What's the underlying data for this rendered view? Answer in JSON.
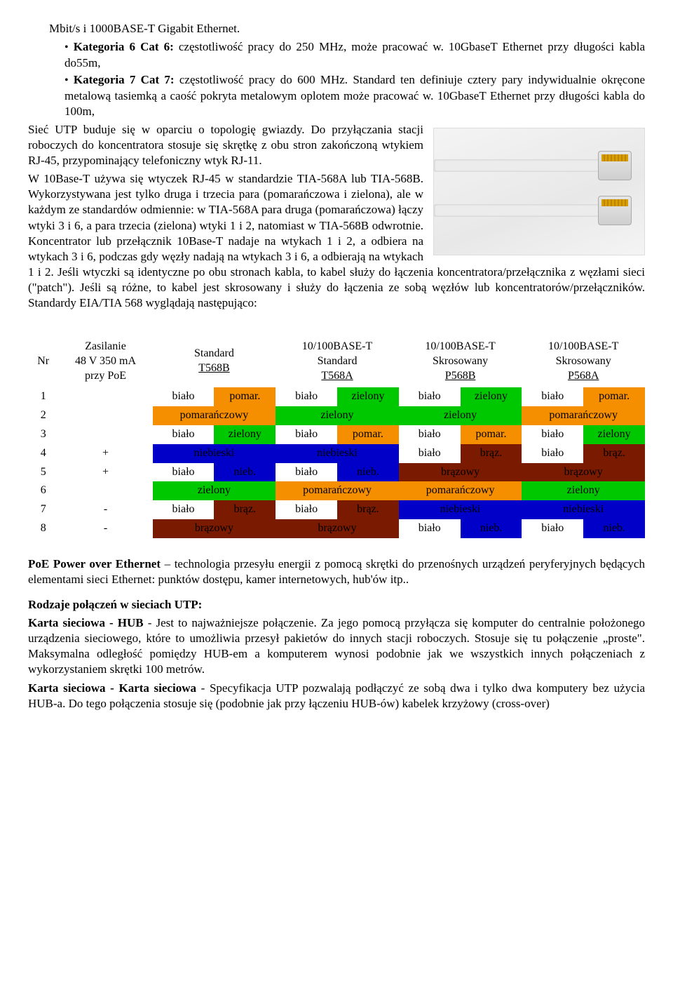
{
  "intro": {
    "line0": "Mbit/s i 1000BASE-T Gigabit Ethernet.",
    "bullet1a": "Kategoria 6 Cat 6:",
    "bullet1b": "  częstotliwość pracy do 250 MHz, może pracować w. 10GbaseT Ethernet przy długości kabla do55m,",
    "bullet2a": "Kategoria 7 Cat 7:",
    "bullet2b": " częstotliwość pracy do 600 MHz. Standard ten definiuje cztery pary indywidualnie okręcone metalową tasiemką a   caość pokryta metalowym oplotem może pracować w. 10GbaseT Ethernet przy długości kabla do 100m,"
  },
  "para1": "Sieć UTP  buduje  się  w  oparciu  o  topologię  gwiazdy.  Do  przyłączania  stacji  roboczych  do koncentratora stosuje się skrętkę z obu stron zakończoną wtykiem RJ-45, przypominający telefoniczny wtyk RJ-11.",
  "para2": "W 10Base-T używa się wtyczek RJ-45 w standardzie TIA-568A lub TIA-568B. Wykorzystywana jest tylko druga i trzecia para (pomarańczowa i zielona), ale w każdym ze standardów odmiennie: w TIA-568A para druga (pomarańczowa) łączy wtyki 3 i 6, a para trzecia (zielona) wtyki 1 i 2, natomiast w TIA-568B odwrotnie.  Koncentrator  lub  przełącznik  10Base-T nadaje na wtykach 1 i 2, a odbiera na wtykach 3 i 6, podczas gdy węzły nadają na wtykach 3 i 6, a odbierają na wtykach 1 i 2. Jeśli wtyczki są identyczne po obu stronach kabla, to kabel służy do łączenia  koncentratora/przełącznika  z  węzłami  sieci  (\"patch\").  Jeśli  są  różne,  to  kabel  jest skrosowany  i  służy  do  łączenia  ze  sobą  węzłów  lub  koncentratorów/przełączników.  Standardy EIA/TIA 568 wyglądają następująco:",
  "tableHeaders": {
    "nr": "Nr",
    "poe_l1": "Zasilanie",
    "poe_l2": "48 V 350 mA",
    "poe_l3": "przy PoE",
    "std_l1": "Standard",
    "std_l2": "T568B",
    "a_l1": "10/100BASE-T",
    "a_l2": "Standard",
    "a_l3": "T568A",
    "b_l1": "10/100BASE-T",
    "b_l2": "Skrosowany",
    "b_l3": "P568B",
    "c_l1": "10/100BASE-T",
    "c_l2": "Skrosowany",
    "c_l3": "P568A"
  },
  "bialo": "biało",
  "colors": {
    "orange": "#f58f00",
    "green": "#00c800",
    "blue": "#0000c8",
    "brown": "#7a1a00",
    "brownDark": "#6a1000",
    "white": "#ffffff",
    "black": "#000000"
  },
  "rows": [
    {
      "nr": "1",
      "poe": "",
      "cells": [
        {
          "type": "half",
          "l": "biało",
          "r": "pomar.",
          "bgL": "#ffffff",
          "bgR": "#f58f00",
          "fg": "#000"
        },
        {
          "type": "half",
          "l": "biało",
          "r": "zielony",
          "bgL": "#ffffff",
          "bgR": "#00c800",
          "fg": "#000"
        },
        {
          "type": "half",
          "l": "biało",
          "r": "zielony",
          "bgL": "#ffffff",
          "bgR": "#00c800",
          "fg": "#000"
        },
        {
          "type": "half",
          "l": "biało",
          "r": "pomar.",
          "bgL": "#ffffff",
          "bgR": "#f58f00",
          "fg": "#000"
        }
      ]
    },
    {
      "nr": "2",
      "poe": "",
      "cells": [
        {
          "type": "full",
          "t": "pomarańczowy",
          "bg": "#f58f00",
          "fg": "#000"
        },
        {
          "type": "full",
          "t": "zielony",
          "bg": "#00c800",
          "fg": "#000"
        },
        {
          "type": "full",
          "t": "zielony",
          "bg": "#00c800",
          "fg": "#000"
        },
        {
          "type": "full",
          "t": "pomarańczowy",
          "bg": "#f58f00",
          "fg": "#000"
        }
      ]
    },
    {
      "nr": "3",
      "poe": "",
      "cells": [
        {
          "type": "half",
          "l": "biało",
          "r": "zielony",
          "bgL": "#ffffff",
          "bgR": "#00c800",
          "fg": "#000"
        },
        {
          "type": "half",
          "l": "biało",
          "r": "pomar.",
          "bgL": "#ffffff",
          "bgR": "#f58f00",
          "fg": "#000"
        },
        {
          "type": "half",
          "l": "biało",
          "r": "pomar.",
          "bgL": "#ffffff",
          "bgR": "#f58f00",
          "fg": "#000"
        },
        {
          "type": "half",
          "l": "biało",
          "r": "zielony",
          "bgL": "#ffffff",
          "bgR": "#00c800",
          "fg": "#000"
        }
      ]
    },
    {
      "nr": "4",
      "poe": "+",
      "cells": [
        {
          "type": "full",
          "t": "niebieski",
          "bg": "#0000c8",
          "fg": "#000"
        },
        {
          "type": "full",
          "t": "niebieski",
          "bg": "#0000c8",
          "fg": "#000"
        },
        {
          "type": "half",
          "l": "biało",
          "r": "brąz.",
          "bgL": "#ffffff",
          "bgR": "#7a1a00",
          "fg": "#000"
        },
        {
          "type": "half",
          "l": "biało",
          "r": "brąz.",
          "bgL": "#ffffff",
          "bgR": "#7a1a00",
          "fg": "#000"
        }
      ]
    },
    {
      "nr": "5",
      "poe": "+",
      "cells": [
        {
          "type": "half",
          "l": "biało",
          "r": "nieb.",
          "bgL": "#ffffff",
          "bgR": "#0000c8",
          "fg": "#000"
        },
        {
          "type": "half",
          "l": "biało",
          "r": "nieb.",
          "bgL": "#ffffff",
          "bgR": "#0000c8",
          "fg": "#000"
        },
        {
          "type": "full",
          "t": "brązowy",
          "bg": "#7a1a00",
          "fg": "#000"
        },
        {
          "type": "full",
          "t": "brązowy",
          "bg": "#7a1a00",
          "fg": "#000"
        }
      ]
    },
    {
      "nr": "6",
      "poe": "",
      "cells": [
        {
          "type": "full",
          "t": "zielony",
          "bg": "#00c800",
          "fg": "#000"
        },
        {
          "type": "full",
          "t": "pomarańczowy",
          "bg": "#f58f00",
          "fg": "#000"
        },
        {
          "type": "full",
          "t": "pomarańczowy",
          "bg": "#f58f00",
          "fg": "#000"
        },
        {
          "type": "full",
          "t": "zielony",
          "bg": "#00c800",
          "fg": "#000"
        }
      ]
    },
    {
      "nr": "7",
      "poe": "-",
      "cells": [
        {
          "type": "half",
          "l": "biało",
          "r": "brąz.",
          "bgL": "#ffffff",
          "bgR": "#7a1a00",
          "fg": "#000"
        },
        {
          "type": "half",
          "l": "biało",
          "r": "brąz.",
          "bgL": "#ffffff",
          "bgR": "#7a1a00",
          "fg": "#000"
        },
        {
          "type": "full",
          "t": "niebieski",
          "bg": "#0000c8",
          "fg": "#000"
        },
        {
          "type": "full",
          "t": "niebieski",
          "bg": "#0000c8",
          "fg": "#000"
        }
      ]
    },
    {
      "nr": "8",
      "poe": "-",
      "cells": [
        {
          "type": "full",
          "t": "brązowy",
          "bg": "#7a1a00",
          "fg": "#000"
        },
        {
          "type": "full",
          "t": "brązowy",
          "bg": "#7a1a00",
          "fg": "#000"
        },
        {
          "type": "half",
          "l": "biało",
          "r": "nieb.",
          "bgL": "#ffffff",
          "bgR": "#0000c8",
          "fg": "#000"
        },
        {
          "type": "half",
          "l": "biało",
          "r": "nieb.",
          "bgL": "#ffffff",
          "bgR": "#0000c8",
          "fg": "#000"
        }
      ]
    }
  ],
  "poe_para_b": "PoE  Power  over  Ethernet",
  "poe_para": "  –  technologia  przesyłu  energii  z  pomocą  skrętki  do  przenośnych urządzeń  peryferyjnych  będących  elementami  sieci  Ethernet:    punktów  dostępu,  kamer internetowych, hub'ów itp..",
  "sec_title": "Rodzaje połączeń w sieciach UTP:",
  "hub_b": "Karta sieciowa - HUB",
  "hub_t": " - Jest to najważniejsze połączenie. Za jego pomocą przyłącza się komputer do centralnie położonego urządzenia sieciowego, które to umożliwia przesył pakietów do innych stacji roboczych. Stosuje się tu połączenie „proste\". Maksymalna odległość pomiędzy HUB-em a komputerem wynosi podobnie jak we wszystkich innych połączeniach z wykorzystaniem skrętki 100 metrów.",
  "nic_b": "Karta sieciowa - Karta sieciowa",
  "nic_t": " - Specyfikacja UTP pozwalają podłączyć ze sobą dwa i tylko dwa komputery bez użycia HUB-a. Do tego połączenia stosuje się (podobnie jak przy łączeniu HUB-ów) kabelek krzyżowy (cross-over)"
}
